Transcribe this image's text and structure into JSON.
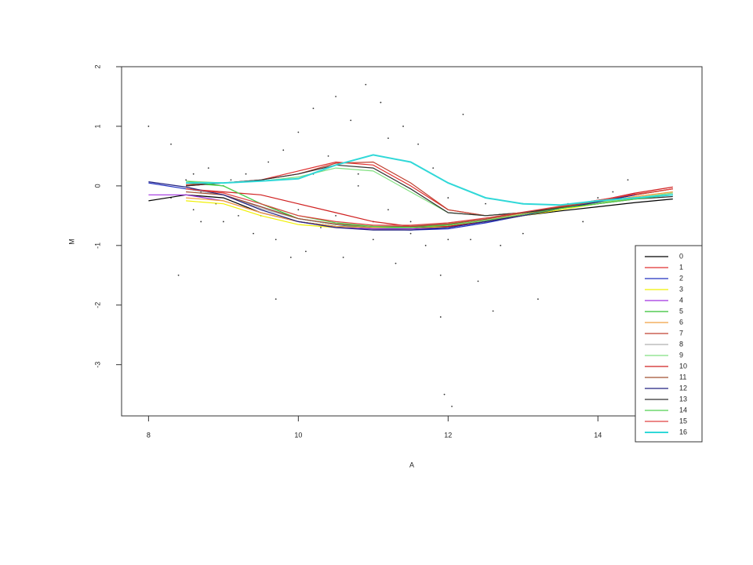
{
  "chart_data": {
    "type": "line",
    "x_label": "A",
    "y_label": "M",
    "xlim": [
      7.64,
      15.39
    ],
    "ylim": [
      -3.86,
      2
    ],
    "xticks": [
      8,
      10,
      12,
      14
    ],
    "yticks": [
      2,
      1,
      0,
      -1,
      -2,
      -3
    ],
    "legend": "right",
    "x": [
      8,
      8.5,
      9,
      9.5,
      10,
      10.5,
      11,
      11.5,
      12,
      12.5,
      13,
      13.5,
      14,
      14.5,
      15
    ],
    "series": [
      {
        "name": "0",
        "color": "#000000",
        "values": [
          -0.25,
          -0.15,
          -0.2,
          -0.45,
          -0.6,
          -0.68,
          -0.7,
          -0.7,
          -0.68,
          -0.6,
          -0.5,
          -0.42,
          -0.35,
          -0.28,
          -0.22
        ]
      },
      {
        "name": "1",
        "color": "#e03030",
        "values": [
          null,
          0,
          0.05,
          0.1,
          0.25,
          0.4,
          0.35,
          0,
          -0.4,
          -0.5,
          -0.45,
          -0.35,
          -0.25,
          -0.15,
          -0.05
        ]
      },
      {
        "name": "2",
        "color": "#2030c0",
        "values": [
          0.05,
          -0.05,
          -0.15,
          -0.35,
          -0.55,
          -0.65,
          -0.72,
          -0.74,
          -0.72,
          -0.62,
          -0.5,
          -0.38,
          -0.27,
          -0.15,
          null
        ]
      },
      {
        "name": "3",
        "color": "#f0f000",
        "values": [
          null,
          -0.25,
          -0.3,
          -0.5,
          -0.65,
          -0.7,
          -0.72,
          -0.72,
          -0.68,
          -0.6,
          -0.5,
          -0.4,
          -0.3,
          -0.2,
          null
        ]
      },
      {
        "name": "4",
        "color": "#a030e0",
        "values": [
          -0.15,
          -0.15,
          -0.25,
          -0.45,
          -0.6,
          -0.7,
          -0.72,
          -0.72,
          -0.7,
          -0.6,
          -0.48,
          -0.35,
          -0.25,
          -0.12,
          null
        ]
      },
      {
        "name": "5",
        "color": "#30c030",
        "values": [
          null,
          0.05,
          0,
          -0.3,
          -0.55,
          -0.65,
          -0.7,
          -0.7,
          -0.65,
          -0.55,
          -0.45,
          -0.35,
          -0.27,
          -0.2,
          -0.15
        ]
      },
      {
        "name": "6",
        "color": "#f0a040",
        "values": [
          null,
          -0.2,
          -0.25,
          -0.45,
          -0.6,
          -0.68,
          -0.7,
          -0.68,
          -0.64,
          -0.56,
          -0.46,
          -0.36,
          -0.27,
          -0.18,
          -0.1
        ]
      },
      {
        "name": "7",
        "color": "#c04030",
        "values": [
          null,
          0.02,
          0.05,
          0.1,
          0.2,
          0.38,
          0.4,
          0.05,
          -0.4,
          -0.5,
          -0.45,
          -0.35,
          -0.24,
          -0.15,
          -0.05
        ]
      },
      {
        "name": "8",
        "color": "#b0b0b0",
        "values": [
          null,
          -0.05,
          -0.15,
          -0.38,
          -0.55,
          -0.65,
          -0.68,
          -0.68,
          -0.62,
          -0.55,
          -0.45,
          -0.36,
          -0.28,
          -0.2,
          -0.12
        ]
      },
      {
        "name": "9",
        "color": "#80e080",
        "values": [
          null,
          0.08,
          0.05,
          0.08,
          0.15,
          0.3,
          0.25,
          -0.1,
          -0.45,
          -0.5,
          -0.45,
          -0.37,
          -0.28,
          -0.2,
          -0.12
        ]
      },
      {
        "name": "10",
        "color": "#d02020",
        "values": [
          null,
          -0.05,
          -0.1,
          -0.15,
          -0.3,
          -0.45,
          -0.6,
          -0.68,
          -0.68,
          -0.6,
          -0.48,
          -0.36,
          -0.25,
          -0.12,
          -0.02
        ]
      },
      {
        "name": "11",
        "color": "#a05030",
        "values": [
          null,
          -0.1,
          -0.15,
          -0.35,
          -0.55,
          -0.64,
          -0.68,
          -0.68,
          -0.64,
          -0.56,
          -0.45,
          -0.35,
          -0.25,
          -0.15,
          -0.05
        ]
      },
      {
        "name": "12",
        "color": "#202080",
        "values": [
          0.07,
          -0.02,
          -0.15,
          -0.4,
          -0.6,
          -0.7,
          -0.74,
          -0.74,
          -0.7,
          -0.6,
          -0.5,
          -0.38,
          -0.27,
          -0.15,
          null
        ]
      },
      {
        "name": "13",
        "color": "#303030",
        "values": [
          null,
          0,
          0.05,
          0.1,
          0.2,
          0.35,
          0.3,
          -0.05,
          -0.45,
          -0.5,
          -0.45,
          -0.37,
          -0.3,
          -0.22,
          -0.18
        ]
      },
      {
        "name": "14",
        "color": "#50d050",
        "values": [
          null,
          0.08,
          0,
          -0.3,
          -0.5,
          -0.62,
          -0.68,
          -0.7,
          -0.66,
          -0.58,
          -0.48,
          -0.38,
          -0.3,
          -0.22,
          -0.15
        ]
      },
      {
        "name": "15",
        "color": "#e04040",
        "values": [
          null,
          -0.05,
          -0.12,
          -0.3,
          -0.5,
          -0.6,
          -0.66,
          -0.66,
          -0.62,
          -0.54,
          -0.44,
          -0.34,
          -0.24,
          -0.14,
          -0.05
        ]
      },
      {
        "name": "16",
        "color": "#30d8d8",
        "values": [
          null,
          0.05,
          0.05,
          0.08,
          0.12,
          0.35,
          0.52,
          0.4,
          0.05,
          -0.2,
          -0.3,
          -0.32,
          -0.25,
          -0.2,
          -0.15
        ]
      }
    ],
    "scatter": {
      "color": "#333333",
      "x": [
        8.3,
        8.5,
        8.6,
        8.7,
        8.8,
        8.9,
        9.0,
        9.1,
        9.2,
        9.3,
        9.4,
        9.5,
        9.6,
        9.7,
        9.8,
        9.9,
        10.0,
        10.1,
        10.2,
        10.3,
        10.4,
        10.5,
        10.6,
        10.7,
        10.8,
        10.9,
        11.0,
        11.1,
        11.2,
        11.3,
        11.4,
        11.5,
        11.6,
        11.7,
        11.8,
        11.9,
        12.0,
        11.95,
        12.05,
        11.9,
        12.2,
        12.3,
        12.4,
        12.5,
        12.6,
        12.8,
        13.0,
        13.2,
        13.4,
        13.6,
        13.8,
        14.0,
        14.2,
        14.4,
        14.6,
        8.0,
        8.4,
        8.3,
        9.7,
        10.5,
        11.0,
        10.0,
        9.5,
        12.5,
        11.5,
        10.8,
        9.0,
        8.7,
        13.0,
        12.0,
        10.2,
        11.2,
        9.9,
        12.7,
        8.6
      ],
      "y": [
        -0.2,
        0.1,
        -0.4,
        -0.1,
        0.3,
        -0.3,
        -0.6,
        0.1,
        -0.5,
        0.2,
        -0.8,
        -0.3,
        0.4,
        -0.9,
        0.6,
        -0.5,
        0.9,
        -1.1,
        1.3,
        -0.7,
        0.5,
        1.5,
        -1.2,
        1.1,
        0.2,
        1.7,
        -0.9,
        1.4,
        0.8,
        -1.3,
        1.0,
        -0.6,
        0.7,
        -1.0,
        0.3,
        -1.5,
        -0.2,
        -3.5,
        -3.7,
        -2.2,
        1.2,
        -0.9,
        -1.6,
        -0.3,
        -2.1,
        -0.5,
        -0.8,
        -1.9,
        -0.4,
        -0.3,
        -0.6,
        -0.2,
        -0.1,
        0.1,
        -0.2,
        1.0,
        -1.5,
        0.7,
        -1.9,
        -0.5,
        -0.6,
        -0.4,
        -0.5,
        -0.6,
        -0.8,
        0.0,
        0.0,
        -0.6,
        -0.3,
        -0.9,
        0.2,
        -0.4,
        -1.2,
        -1.0,
        0.2
      ]
    }
  }
}
